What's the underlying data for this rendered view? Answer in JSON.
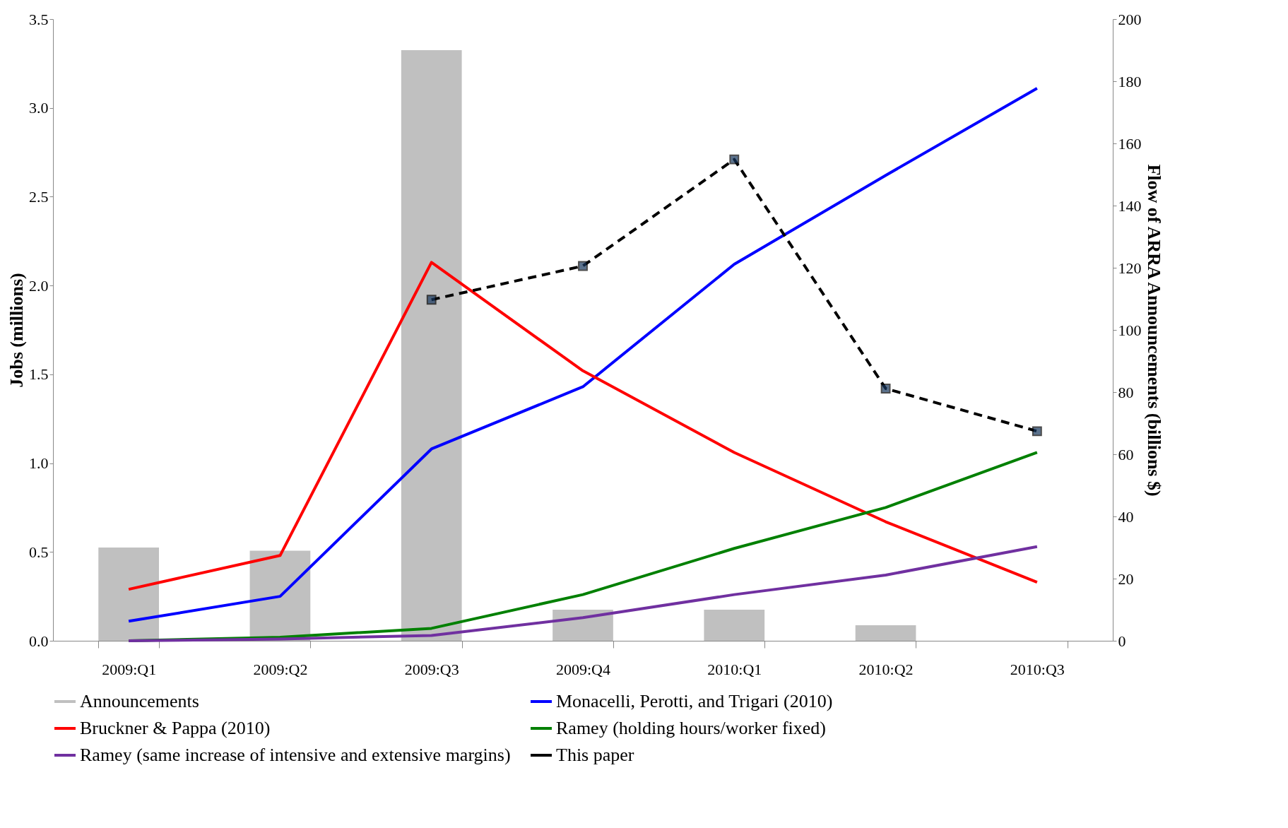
{
  "chart_data": {
    "type": "line",
    "xlabel": null,
    "ylabel": "Jobs (millions)",
    "y2label": "Flow of ARRA Announcements (billions $)",
    "categories": [
      "2009:Q1",
      "2009:Q2",
      "2009:Q3",
      "2009:Q4",
      "2010:Q1",
      "2010:Q2",
      "2010:Q3"
    ],
    "ylim": [
      0,
      3.5
    ],
    "yticks": [
      {
        "value": 0,
        "label": "0.0"
      },
      {
        "value": 0.5,
        "label": "0.5"
      },
      {
        "value": 1,
        "label": "1.0"
      },
      {
        "value": 1.5,
        "label": "1.5"
      },
      {
        "value": 2,
        "label": "2.0"
      },
      {
        "value": 2.5,
        "label": "2.5"
      },
      {
        "value": 3,
        "label": "3.0"
      },
      {
        "value": 3.5,
        "label": "3.5"
      }
    ],
    "y2lim": [
      0,
      200
    ],
    "y2ticks": [
      0,
      20,
      40,
      60,
      80,
      100,
      120,
      140,
      160,
      180,
      200
    ],
    "grid": false,
    "legend": "bottom",
    "series": [
      {
        "name": "Announcements",
        "type": "bar",
        "axis": "y2",
        "color": "#c0c0c0",
        "values": [
          30,
          29,
          190,
          10,
          10,
          5,
          null
        ]
      },
      {
        "name": "Monacelli, Perotti, and Trigari (2010)",
        "color": "#0000ff",
        "values": [
          0.11,
          0.25,
          1.08,
          1.43,
          2.12,
          2.62,
          3.11
        ]
      },
      {
        "name": "Bruckner & Pappa (2010)",
        "color": "#ff0000",
        "values": [
          0.29,
          0.48,
          2.13,
          1.52,
          1.06,
          0.67,
          0.33
        ]
      },
      {
        "name": "Ramey (holding hours/worker fixed)",
        "color": "#008000",
        "values": [
          0,
          0.02,
          0.07,
          0.26,
          0.52,
          0.75,
          1.06
        ]
      },
      {
        "name": "Ramey (same increase of intensive and extensive margins)",
        "color": "#7030a0",
        "values": [
          0,
          0.01,
          0.03,
          0.13,
          0.26,
          0.37,
          0.53
        ]
      },
      {
        "name": "This paper",
        "color": "#000000",
        "line_style": "dashed",
        "marker": "square",
        "values": [
          null,
          null,
          1.92,
          2.11,
          2.71,
          1.42,
          1.18
        ]
      }
    ]
  }
}
